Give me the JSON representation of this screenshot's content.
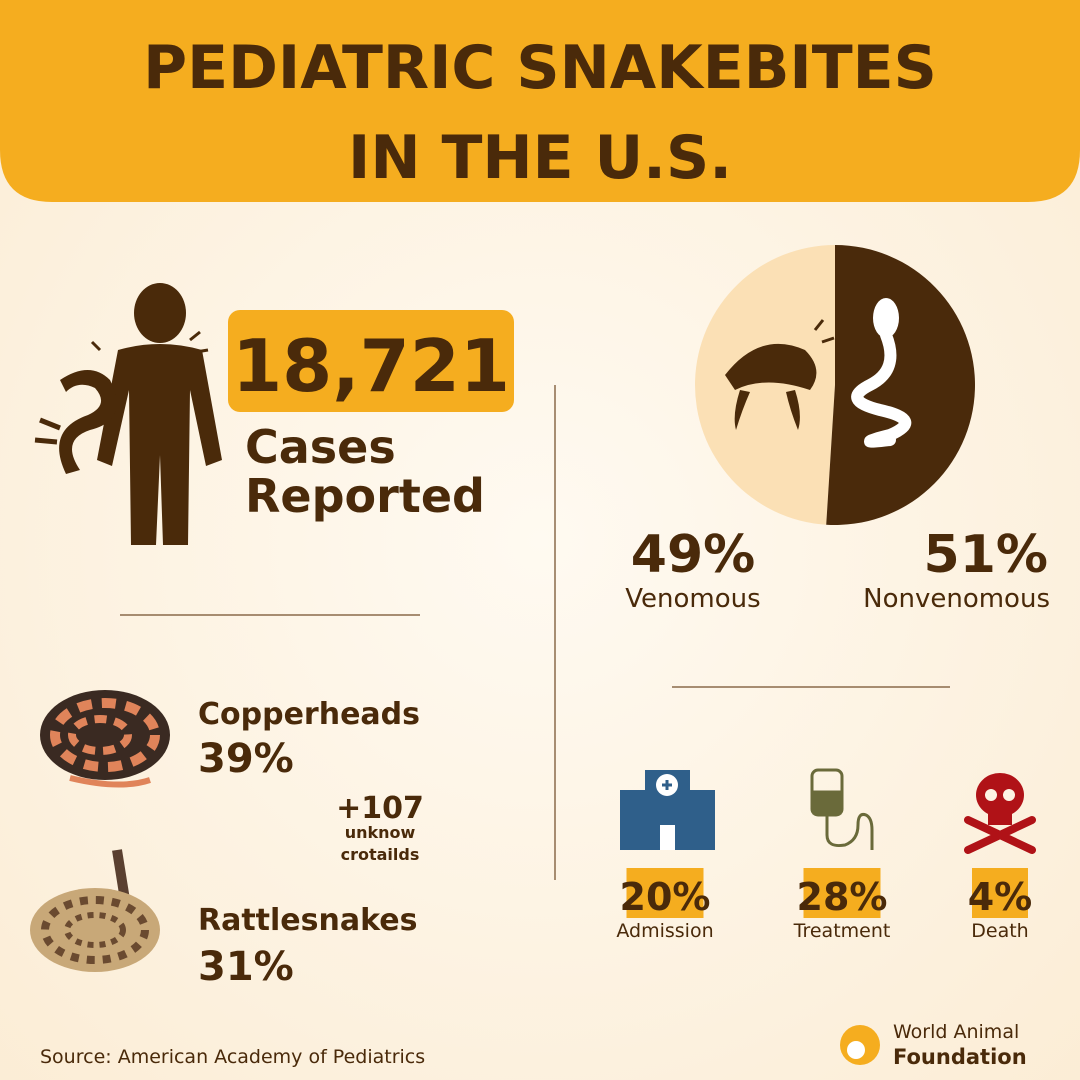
{
  "header": {
    "title_lines": [
      "PEDIATRIC SNAKEBITES",
      "IN THE U.S."
    ]
  },
  "cases": {
    "number": "18,721",
    "label_lines": [
      "Cases",
      "Reported"
    ]
  },
  "bite_types": {
    "values": [
      49,
      51
    ],
    "value_labels": [
      "49%",
      "51%"
    ],
    "labels": [
      "Venomous",
      "Nonvenomous"
    ],
    "colors": [
      "#fbe0b5",
      "#4a2a0b"
    ]
  },
  "species": {
    "items": [
      {
        "name": "Copperheads",
        "percent": "39%"
      },
      {
        "name": "Rattlesnakes",
        "percent": "31%"
      }
    ],
    "unknown": {
      "number": "+107",
      "label_lines": [
        "unknow",
        "crotailds"
      ]
    }
  },
  "outcomes": [
    {
      "percent": "20%",
      "label": "Admission"
    },
    {
      "percent": "28%",
      "label": "Treatment"
    },
    {
      "percent": "4%",
      "label": "Death"
    }
  ],
  "footer": {
    "source": "Source: American Academy of Pediatrics",
    "logo_lines": [
      "World Animal",
      "Foundation"
    ]
  }
}
